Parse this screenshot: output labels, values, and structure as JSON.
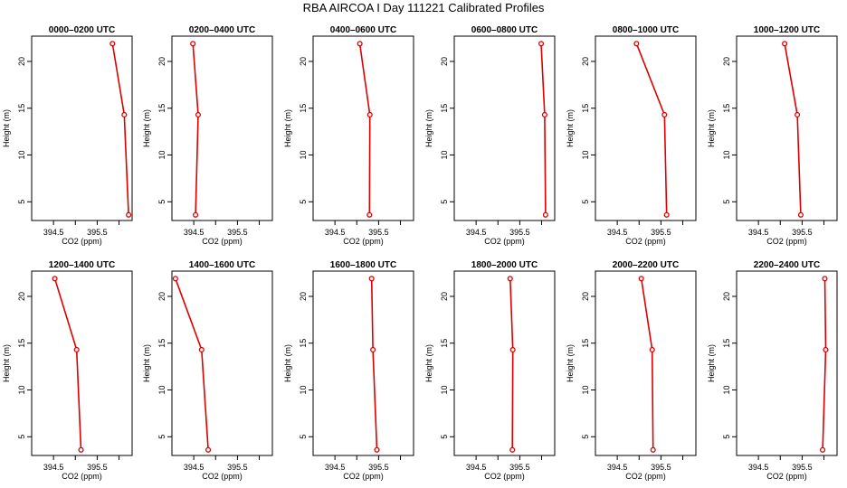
{
  "chart_data": {
    "type": "line",
    "title": "RBA AIRCOA I  Day 111221  Calibrated Profiles",
    "xlabel": "CO2 (ppm)",
    "ylabel": "Height (m)",
    "xlim": [
      394.0,
      396.3
    ],
    "ylim": [
      3.0,
      22.7
    ],
    "x_ticks": [
      394.5,
      395,
      395.5,
      396
    ],
    "x_tick_labels": [
      "394.5",
      "",
      "395.5",
      ""
    ],
    "y_ticks": [
      5,
      10,
      15,
      20
    ],
    "y_tick_labels": [
      "5",
      "10",
      "15",
      "20"
    ],
    "heights": [
      21.9,
      14.3,
      3.6
    ],
    "line_color": "#dd0000",
    "grid": false,
    "panels": [
      {
        "title": "0000–0200 UTC",
        "co2": [
          395.85,
          396.12,
          396.22
        ]
      },
      {
        "title": "0200–0400 UTC",
        "co2": [
          394.48,
          394.6,
          394.54
        ]
      },
      {
        "title": "0400–0600 UTC",
        "co2": [
          395.07,
          395.3,
          395.29
        ]
      },
      {
        "title": "0600–0800 UTC",
        "co2": [
          395.99,
          396.07,
          396.09
        ]
      },
      {
        "title": "0800–1000 UTC",
        "co2": [
          394.94,
          395.58,
          395.63
        ]
      },
      {
        "title": "1000–1200 UTC",
        "co2": [
          395.1,
          395.39,
          395.47
        ]
      },
      {
        "title": "1200–1400 UTC",
        "co2": [
          394.53,
          395.03,
          395.13
        ]
      },
      {
        "title": "1400–1600 UTC",
        "co2": [
          394.08,
          394.68,
          394.83
        ]
      },
      {
        "title": "1600–1800 UTC",
        "co2": [
          395.34,
          395.37,
          395.46
        ]
      },
      {
        "title": "1800–2000 UTC",
        "co2": [
          395.28,
          395.34,
          395.33
        ]
      },
      {
        "title": "2000–2200 UTC",
        "co2": [
          395.05,
          395.3,
          395.32
        ]
      },
      {
        "title": "2200–2400 UTC",
        "co2": [
          396.02,
          396.04,
          395.97
        ]
      }
    ]
  }
}
